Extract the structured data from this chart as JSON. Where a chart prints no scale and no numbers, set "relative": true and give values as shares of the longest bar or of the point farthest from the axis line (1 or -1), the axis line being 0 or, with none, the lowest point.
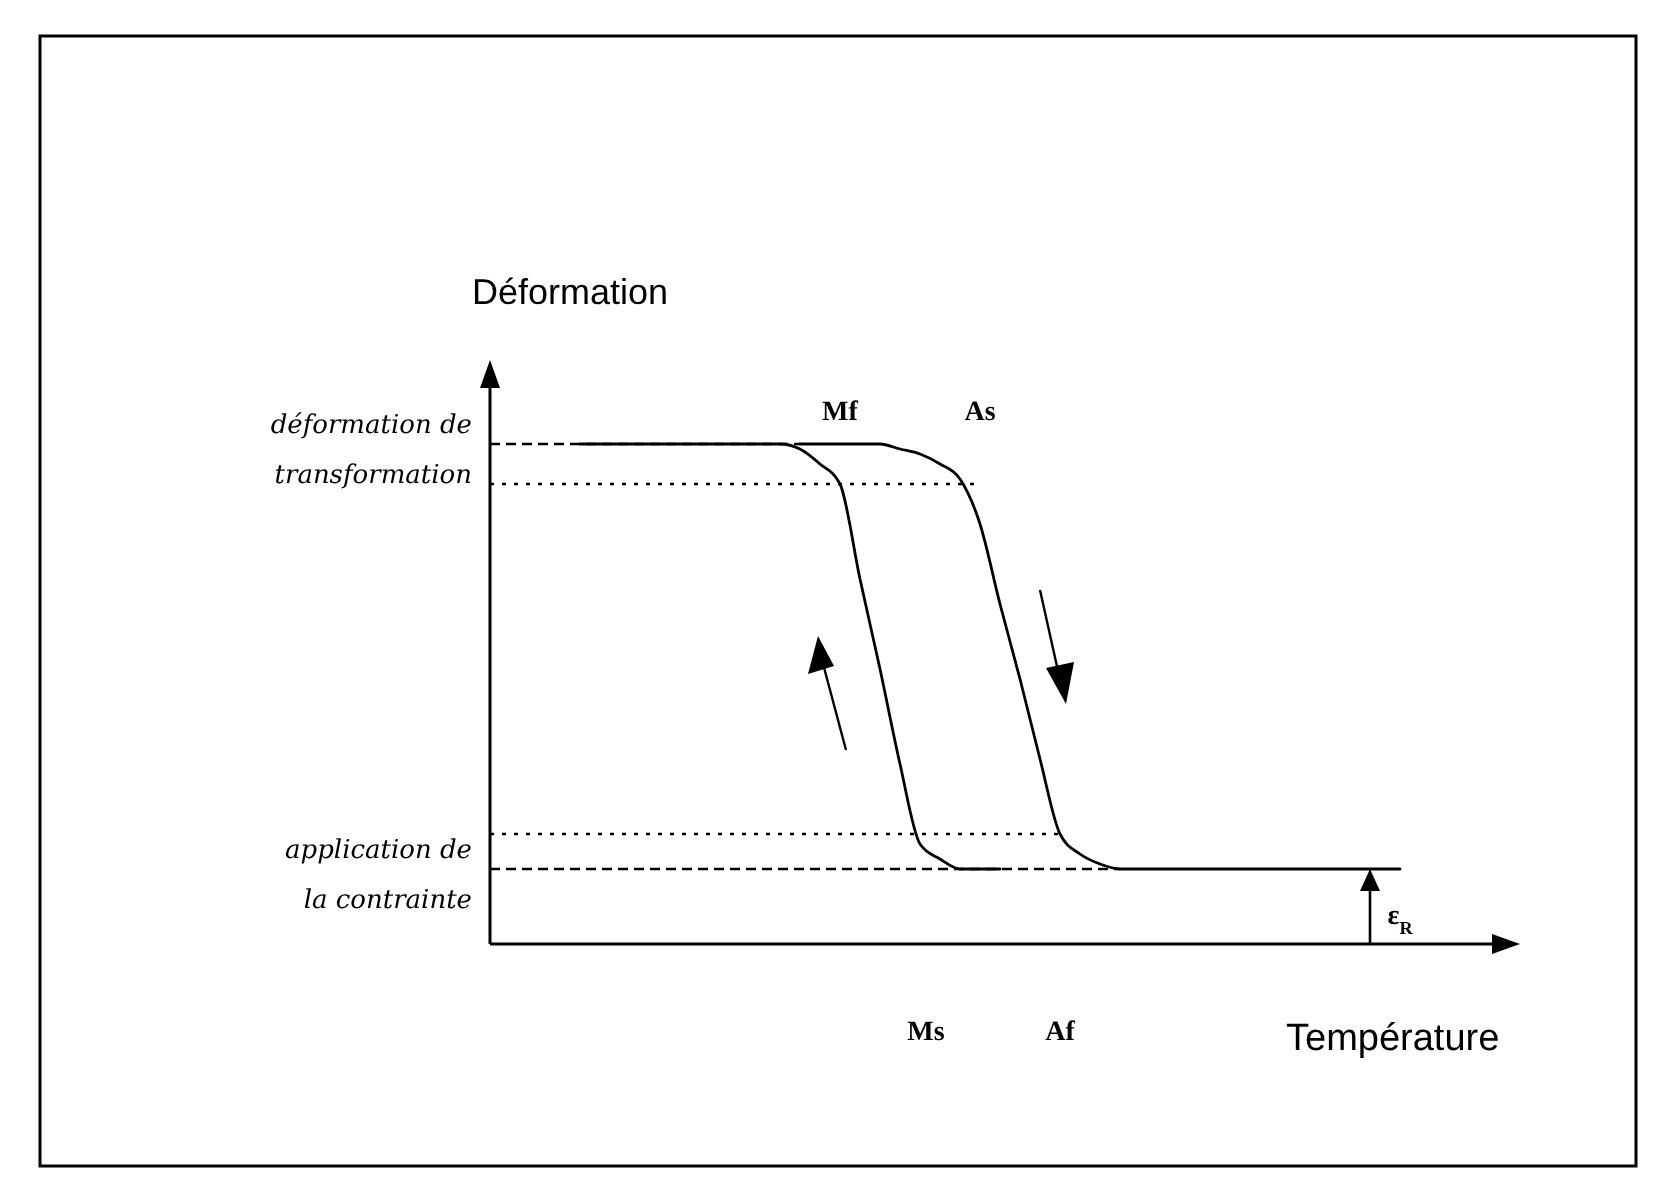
{
  "chart_data": {
    "type": "line",
    "relative": true,
    "xlabel": "Température",
    "ylabel": "Déformation",
    "categories": [
      null,
      null,
      null,
      null,
      null,
      null,
      null,
      null,
      null,
      null,
      null,
      null,
      null,
      null,
      null,
      null,
      null,
      null,
      null,
      null,
      null,
      null,
      null,
      null,
      null,
      null,
      null,
      null,
      null,
      null,
      null,
      null,
      null,
      null,
      null,
      null,
      null,
      null,
      null,
      null,
      null,
      null
    ],
    "series": [
      {
        "color": "#000000",
        "values": [
          1,
          1,
          1,
          1,
          1,
          1,
          1,
          1,
          1,
          1,
          1,
          0.99,
          0.96,
          0.92,
          0.73,
          0.55,
          0.36,
          0.2,
          0.17,
          0.15,
          0.15,
          0.15,
          null,
          null,
          null,
          null,
          null,
          null,
          null,
          null,
          null,
          null,
          null,
          null,
          null,
          null,
          null,
          null,
          null,
          null,
          null,
          null
        ]
      },
      {
        "color": "#000000",
        "values": [
          null,
          null,
          null,
          null,
          null,
          null,
          null,
          null,
          null,
          null,
          null,
          1,
          1,
          1,
          1,
          1,
          0.99,
          0.98,
          0.96,
          0.93,
          0.84,
          0.68,
          0.53,
          0.37,
          0.22,
          0.18,
          0.16,
          0.15,
          0.15,
          0.15,
          0.15,
          0.15,
          0.15,
          0.15,
          0.15,
          0.15,
          0.15,
          0.15,
          0.15,
          0.15,
          0.15,
          0.15
        ]
      }
    ],
    "ref_lines": [
      {
        "axis": "y",
        "value": 1,
        "label": "déformation de transformation",
        "line_style": "dashed"
      },
      {
        "axis": "y",
        "value": 0.92,
        "line_style": "dotted"
      },
      {
        "axis": "y",
        "value": 0.22,
        "line_style": "dotted"
      },
      {
        "axis": "y",
        "value": 0.15,
        "label": "application de la contrainte",
        "line_style": "dashed"
      }
    ],
    "annotations": [
      "Mf",
      "As",
      "Ms",
      "Af",
      "ε$_{R}$"
    ]
  }
}
